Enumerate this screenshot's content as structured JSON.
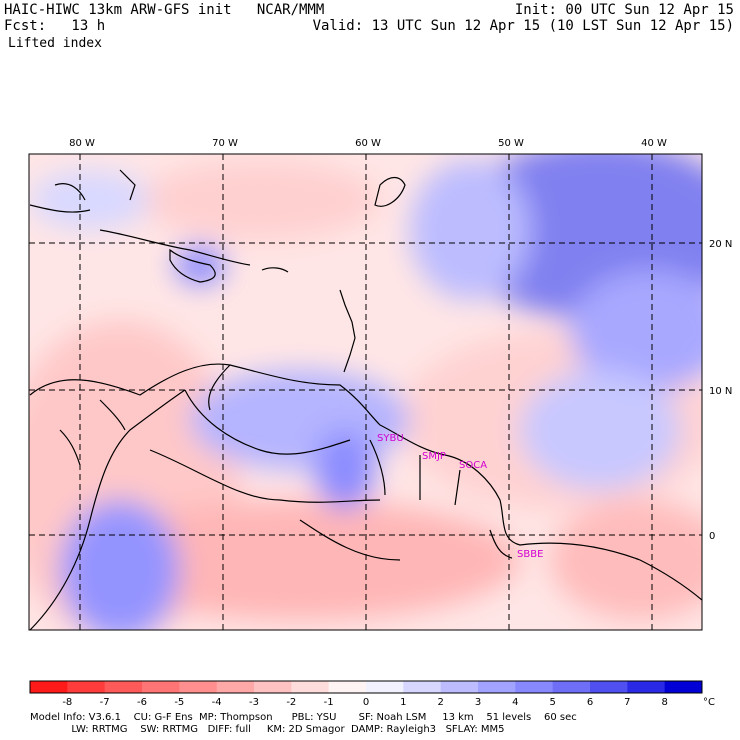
{
  "header": {
    "title_left": "HAIC-HIWC 13km ARW-GFS init   NCAR/MMM",
    "forecast": "Fcst:   13 h",
    "field": "Lifted index",
    "init": "Init: 00 UTC Sun 12 Apr 15",
    "valid": "Valid: 13 UTC Sun 12 Apr 15 (10 LST Sun 12 Apr 15)"
  },
  "map": {
    "lon_labels": [
      "80 W",
      "70 W",
      "60 W",
      "50 W",
      "40 W"
    ],
    "lat_labels": [
      "20 N",
      "10 N",
      "0"
    ],
    "stations": [
      "SYBU",
      "SMJP",
      "SOCA",
      "SBBE"
    ]
  },
  "colorbar": {
    "ticks": [
      "-8",
      "-7",
      "-6",
      "-5",
      "-4",
      "-3",
      "-2",
      "-1",
      "0",
      "1",
      "2",
      "3",
      "4",
      "5",
      "6",
      "7",
      "8"
    ],
    "unit": "°C",
    "colors": [
      "#ff1a1a",
      "#ff3c3c",
      "#ff5a5a",
      "#ff7474",
      "#ff8e8e",
      "#ffa8a8",
      "#ffc2c2",
      "#ffdcdc",
      "#fff4f4",
      "#f2f2ff",
      "#d6d6ff",
      "#bcbcff",
      "#a2a2ff",
      "#8888ff",
      "#6e6ef6",
      "#5050f0",
      "#2a2ae6",
      "#0000d6"
    ]
  },
  "footer": {
    "line1": "Model Info: V3.6.1    CU: G-F Ens  MP: Thompson      PBL: YSU       SF: Noah LSM     13 km    51 levels    60 sec",
    "line2": "             LW: RRTMG    SW: RRTMG   DIFF: full     KM: 2D Smagor  DAMP: Rayleigh3   SFLAY: MM5"
  }
}
